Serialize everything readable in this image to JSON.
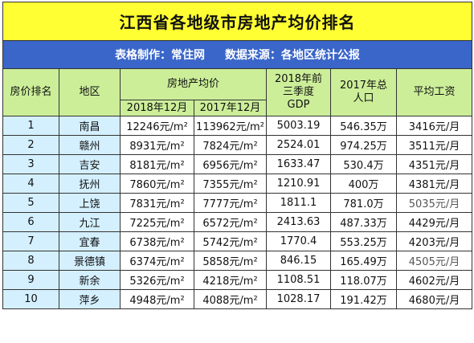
{
  "title": "江西省各地级市房地产均价排名",
  "credit": {
    "maker": "表格制作：常住网",
    "source": "数据来源：各地区统计公报"
  },
  "headers": {
    "rank": "房价排名",
    "region": "地区",
    "price_group": "房地产均价",
    "price_2018": "2018年12月",
    "price_2017": "2017年12月",
    "gdp": "2018年前三季度GDP",
    "gdp_line1": "2018年前",
    "gdp_line2": "三季度",
    "gdp_line3": "GDP",
    "pop_line1": "2017年总",
    "pop_line2": "人口",
    "wage": "平均工资"
  },
  "rows": [
    {
      "rank": "1",
      "region": "南昌",
      "p18": "12246元/m²",
      "p17": "113962元/m²",
      "gdp": "5003.19",
      "pop": "546.35万",
      "wage": "3416元/月"
    },
    {
      "rank": "2",
      "region": "赣州",
      "p18": "8931元/m²",
      "p17": "7824元/m²",
      "gdp": "2524.01",
      "pop": "974.25万",
      "wage": "3511元/月"
    },
    {
      "rank": "3",
      "region": "吉安",
      "p18": "8181元/m²",
      "p17": "6956元/m²",
      "gdp": "1633.47",
      "pop": "530.4万",
      "wage": "4351元/月"
    },
    {
      "rank": "4",
      "region": "抚州",
      "p18": "7860元/m²",
      "p17": "7355元/m²",
      "gdp": "1210.91",
      "pop": "400万",
      "wage": "4381元/月"
    },
    {
      "rank": "5",
      "region": "上饶",
      "p18": "7831元/m²",
      "p17": "7777元/m²",
      "gdp": "1811.1",
      "pop": "781.0万",
      "wage": "5035元/月"
    },
    {
      "rank": "6",
      "region": "九江",
      "p18": "7225元/m²",
      "p17": "6572元/m²",
      "gdp": "2413.63",
      "pop": "487.33万",
      "wage": "4429元/月"
    },
    {
      "rank": "7",
      "region": "宜春",
      "p18": "6738元/m²",
      "p17": "5742元/m²",
      "gdp": "1770.4",
      "pop": "553.25万",
      "wage": "4203元/月"
    },
    {
      "rank": "8",
      "region": "景德镇",
      "p18": "6374元/m²",
      "p17": "5858元/m²",
      "gdp": "846.15",
      "pop": "165.49万",
      "wage": "4505元/月"
    },
    {
      "rank": "9",
      "region": "新余",
      "p18": "5326元/m²",
      "p17": "4218元/m²",
      "gdp": "1108.51",
      "pop": "118.07万",
      "wage": "4602元/月"
    },
    {
      "rank": "10",
      "region": "萍乡",
      "p18": "4948元/m²",
      "p17": "4088元/m²",
      "gdp": "1028.17",
      "pop": "191.42万",
      "wage": "4680元/月"
    }
  ]
}
